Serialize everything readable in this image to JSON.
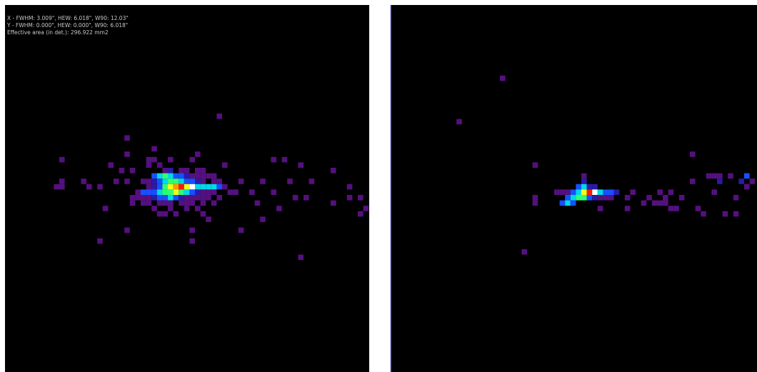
{
  "left_panel": {
    "info_lines": [
      "X - FWHM: 3.009\", HEW: 6.018\", W90: 12.03\"",
      "Y - FWHM: 0.000\", HEW: 0.000\", W90: 6.018\"",
      "Effective area (in det.): 296.922 mm2"
    ]
  }
}
